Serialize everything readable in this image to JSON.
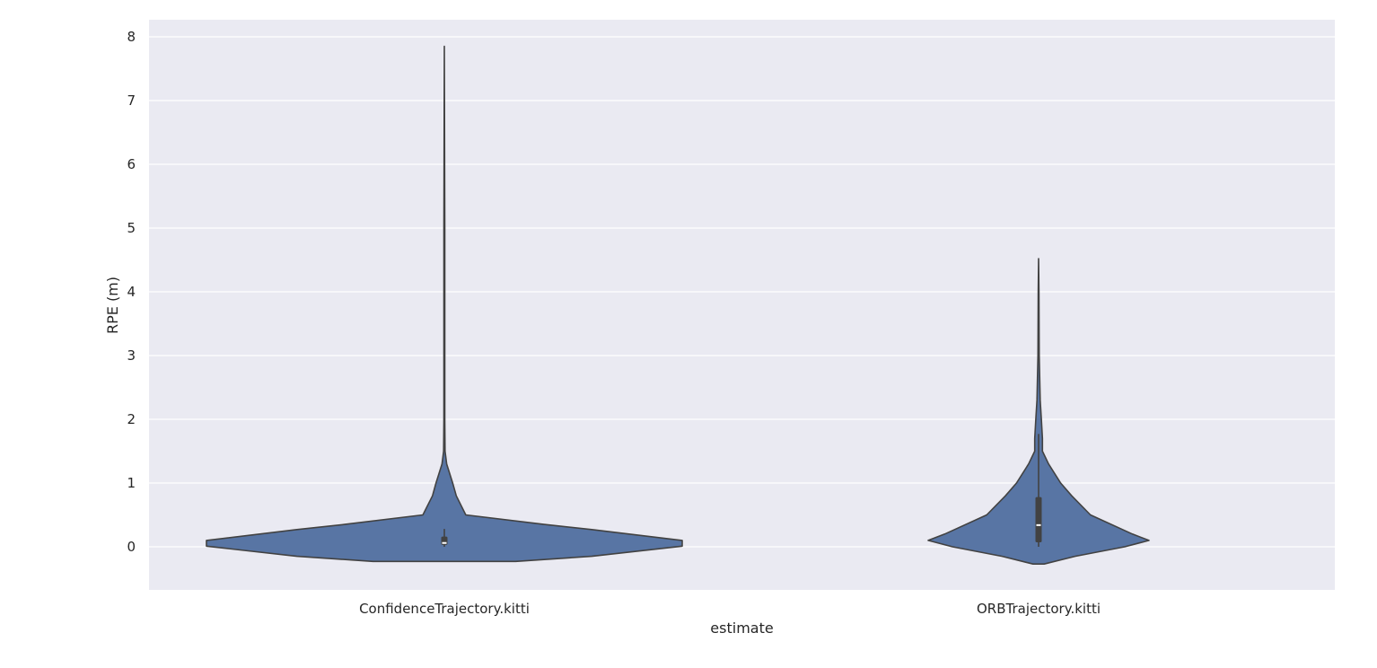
{
  "chart_data": {
    "type": "violin",
    "title": "",
    "xlabel": "estimate",
    "ylabel": "RPE (m)",
    "ylim": [
      -0.67,
      8.27
    ],
    "yticks": [
      0,
      1,
      2,
      3,
      4,
      5,
      6,
      7,
      8
    ],
    "grid": true,
    "categories": [
      "ConfidenceTrajectory.kitti",
      "ORBTrajectory.kitti"
    ],
    "fill_color": "#5875a4",
    "edge_color": "#424242",
    "background_color": "#eaeaf2",
    "violins": [
      {
        "category": "ConfidenceTrajectory.kitti",
        "range": [
          -0.23,
          7.85
        ],
        "quartiles": [
          0.03,
          0.06,
          0.16
        ],
        "whisker": [
          0.0,
          0.28
        ],
        "profile": [
          [
            -0.23,
            0.3
          ],
          [
            -0.15,
            0.62
          ],
          [
            0.01,
            1.0
          ],
          [
            0.1,
            1.0
          ],
          [
            0.27,
            0.62
          ],
          [
            0.35,
            0.42
          ],
          [
            0.5,
            0.09
          ],
          [
            0.8,
            0.05
          ],
          [
            1.0,
            0.035
          ],
          [
            1.3,
            0.01
          ],
          [
            1.5,
            0.003
          ],
          [
            2.0,
            0.002
          ],
          [
            5.0,
            0.002
          ],
          [
            7.85,
            0.0
          ]
        ]
      },
      {
        "category": "ORBTrajectory.kitti",
        "range": [
          -0.27,
          4.52
        ],
        "quartiles": [
          0.07,
          0.34,
          0.78
        ],
        "whisker": [
          0.0,
          1.77
        ],
        "profile": [
          [
            -0.27,
            0.05
          ],
          [
            -0.15,
            0.33
          ],
          [
            0.0,
            0.78
          ],
          [
            0.1,
            1.0
          ],
          [
            0.2,
            0.85
          ],
          [
            0.5,
            0.47
          ],
          [
            0.8,
            0.3
          ],
          [
            1.0,
            0.2
          ],
          [
            1.3,
            0.09
          ],
          [
            1.5,
            0.035
          ],
          [
            1.7,
            0.035
          ],
          [
            2.0,
            0.025
          ],
          [
            2.3,
            0.015
          ],
          [
            3.0,
            0.006
          ],
          [
            4.0,
            0.003
          ],
          [
            4.52,
            0.0
          ]
        ]
      }
    ]
  }
}
